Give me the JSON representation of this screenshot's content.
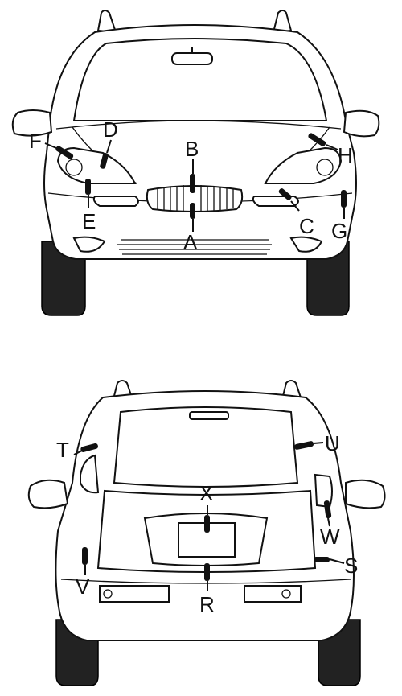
{
  "front_view": {
    "labels": {
      "A": "A",
      "B": "B",
      "C": "C",
      "D": "D",
      "E": "E",
      "F": "F",
      "G": "G",
      "H": "H"
    }
  },
  "rear_view": {
    "labels": {
      "R": "R",
      "S": "S",
      "T": "T",
      "U": "U",
      "V": "V",
      "W": "W",
      "X": "X"
    }
  }
}
